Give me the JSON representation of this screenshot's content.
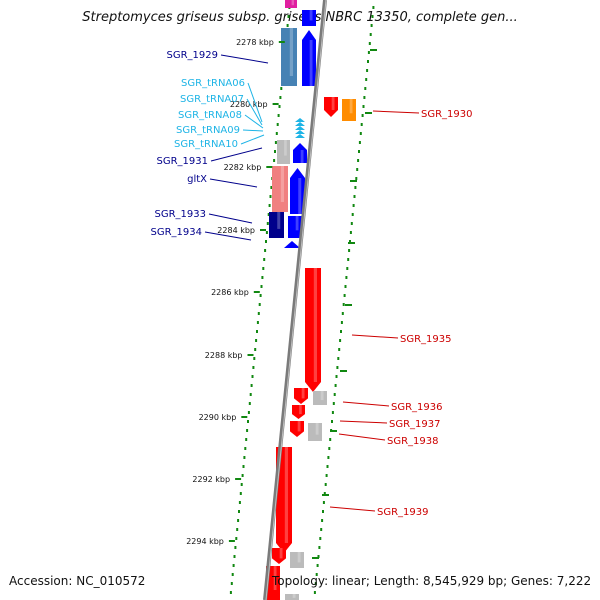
{
  "header": {
    "title": "Streptomyces griseus subsp. griseus NBRC 13350, complete gen..."
  },
  "footer": {
    "accession": "Accession: NC_010572",
    "summary": "Topology: linear; Length: 8,545,929 bp; Genes: 7,222"
  },
  "colors": {
    "reverse_gene_label": "#00008b",
    "trna_label": "#1eb4e6",
    "forward_gene_label": "#cc0000",
    "tick": "#118811",
    "backbone": "#7a7a7a"
  },
  "scale": {
    "ticks": [
      "2278 kbp",
      "2280 kbp",
      "2282 kbp",
      "2284 kbp",
      "2286 kbp",
      "2288 kbp",
      "2290 kbp",
      "2292 kbp",
      "2294 kbp"
    ]
  },
  "left_labels": [
    {
      "text": "SGR_1929",
      "kind": "gene"
    },
    {
      "text": "SGR_tRNA06",
      "kind": "trna"
    },
    {
      "text": "SGR_tRNA07",
      "kind": "trna"
    },
    {
      "text": "SGR_tRNA08",
      "kind": "trna"
    },
    {
      "text": "SGR_tRNA09",
      "kind": "trna"
    },
    {
      "text": "SGR_tRNA10",
      "kind": "trna"
    },
    {
      "text": "SGR_1931",
      "kind": "gene"
    },
    {
      "text": "gltX",
      "kind": "gene"
    },
    {
      "text": "SGR_1933",
      "kind": "gene"
    },
    {
      "text": "SGR_1934",
      "kind": "gene"
    }
  ],
  "right_labels": [
    {
      "text": "SGR_1930"
    },
    {
      "text": "SGR_1935"
    },
    {
      "text": "SGR_1936"
    },
    {
      "text": "SGR_1937"
    },
    {
      "text": "SGR_1938"
    },
    {
      "text": "SGR_1939"
    }
  ]
}
